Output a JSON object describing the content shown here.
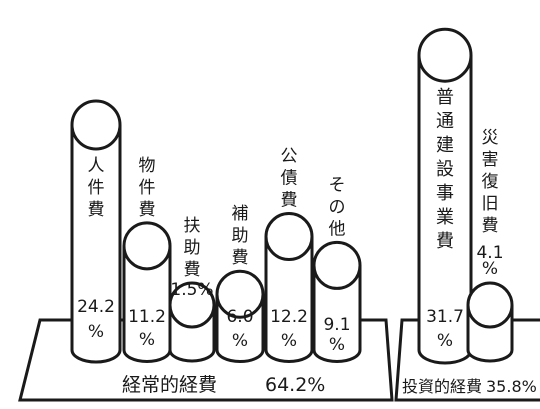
{
  "chart_data": {
    "type": "bar",
    "style": "cylinder",
    "unit": "%",
    "series": [
      {
        "label": "人件費",
        "value": 24.2,
        "value_text": "24.2",
        "pct_text": "%",
        "group": "ordinary"
      },
      {
        "label": "物件費",
        "value": 11.2,
        "value_text": "11.2",
        "pct_text": "%",
        "group": "ordinary"
      },
      {
        "label": "扶助費",
        "value": 1.5,
        "value_text": "1.5%",
        "pct_text": "",
        "group": "ordinary"
      },
      {
        "label": "補助費",
        "value": 6.0,
        "value_text": "6.0",
        "pct_text": "%",
        "group": "ordinary"
      },
      {
        "label": "公債費",
        "value": 12.2,
        "value_text": "12.2",
        "pct_text": "%",
        "group": "ordinary"
      },
      {
        "label": "その他",
        "value": 9.1,
        "value_text": "9.1",
        "pct_text": "%",
        "group": "ordinary"
      },
      {
        "label": "普通建設事業費",
        "value": 31.7,
        "value_text": "31.7",
        "pct_text": "%",
        "group": "investment"
      },
      {
        "label": "災害復旧費",
        "value": 4.1,
        "value_text": "4.1",
        "pct_text": "%",
        "group": "investment"
      }
    ],
    "groups": [
      {
        "id": "ordinary",
        "label": "経常的経費",
        "total_text": "64.2%"
      },
      {
        "id": "investment",
        "label": "投資的経費",
        "total_text": "35.8%"
      }
    ],
    "colors": {
      "ink": "#1a1a1a",
      "fill": "#ffffff"
    }
  }
}
